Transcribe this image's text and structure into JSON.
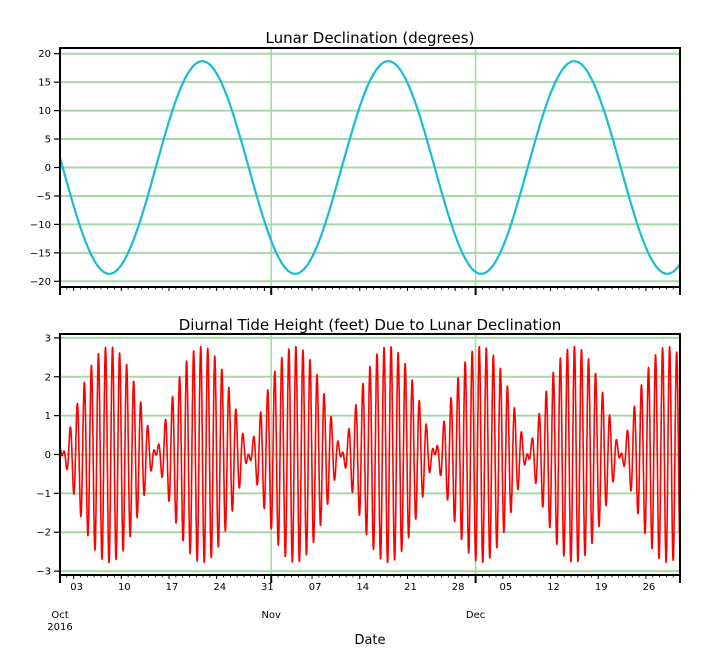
{
  "chart_data": [
    {
      "type": "line",
      "title": "Lunar Declination (degrees)",
      "xlabel": "",
      "ylabel": "",
      "ylim": [
        -21,
        21
      ],
      "yticks": [
        20,
        15,
        10,
        5,
        0,
        -5,
        -10,
        -15,
        -20
      ],
      "ytick_labels": [
        "20",
        "15",
        "10",
        "5",
        "0",
        "−5",
        "−10",
        "−15",
        "−20"
      ],
      "grid": {
        "horizontal": true,
        "vertical_at_months": true,
        "color": "#a8d8a8"
      },
      "line_color": "#17becf",
      "xrange_days": [
        0,
        91
      ],
      "series": [
        {
          "name": "Lunar Declination",
          "model": "amplitude * -sin(2*pi*(day - phase)/period)",
          "amplitude": 18.7,
          "period_days": 27.3,
          "phase_days": 0.4,
          "key_points": [
            {
              "date": "2016-10-01",
              "value": -1
            },
            {
              "date": "2016-10-08",
              "value": -18.5
            },
            {
              "date": "2016-10-21",
              "value": 18.6
            },
            {
              "date": "2016-11-04",
              "value": -18.7
            },
            {
              "date": "2016-11-17",
              "value": 18.7
            },
            {
              "date": "2016-12-01",
              "value": -18.9
            },
            {
              "date": "2016-12-14",
              "value": 18.8
            },
            {
              "date": "2016-12-28",
              "value": -19
            },
            {
              "date": "2016-12-31",
              "value": -17.5
            }
          ]
        }
      ]
    },
    {
      "type": "line",
      "title": "Diurnal Tide Height (feet) Due to Lunar Declination",
      "xlabel": "Date",
      "ylabel": "",
      "ylim": [
        -3.1,
        3.1
      ],
      "yticks": [
        3,
        2,
        1,
        0,
        -1,
        -2,
        -3
      ],
      "ytick_labels": [
        "3",
        "2",
        "1",
        "0",
        "−1",
        "−2",
        "−3"
      ],
      "grid": {
        "horizontal": true,
        "vertical_at_months": true,
        "color": "#a8d8a8"
      },
      "line_color": "#ff0000",
      "xrange_days": [
        0,
        91
      ],
      "series": [
        {
          "name": "Diurnal Tide Height",
          "model": "max_amplitude * (declination/18.7) * cos(2*pi*day/1.035 + 0.3)",
          "max_amplitude": 2.78,
          "carrier_period_days": 1.035,
          "envelope_peaks_feet": 2.78,
          "envelope_nodes": [
            "2016-10-01",
            "2016-10-14",
            "2016-10-28",
            "2016-11-10",
            "2016-11-24",
            "2016-12-08",
            "2016-12-21"
          ]
        }
      ],
      "x_minor_labels": [
        "03",
        "10",
        "17",
        "24",
        "31",
        "07",
        "14",
        "21",
        "28",
        "05",
        "12",
        "19",
        "26"
      ],
      "x_major_labels": [
        "Oct\n2016",
        "Nov",
        "Dec"
      ]
    }
  ],
  "figure": {
    "top_title": "Lunar Declination (degrees)",
    "bottom_title": "Diurnal Tide Height (feet) Due to Lunar Declination",
    "x_axis_label": "Date",
    "minor_ticks": [
      {
        "label": "03",
        "day": 2
      },
      {
        "label": "10",
        "day": 9
      },
      {
        "label": "17",
        "day": 16
      },
      {
        "label": "24",
        "day": 23
      },
      {
        "label": "31",
        "day": 30
      },
      {
        "label": "07",
        "day": 37
      },
      {
        "label": "14",
        "day": 44
      },
      {
        "label": "21",
        "day": 51
      },
      {
        "label": "28",
        "day": 58
      },
      {
        "label": "05",
        "day": 65
      },
      {
        "label": "12",
        "day": 72
      },
      {
        "label": "19",
        "day": 79
      },
      {
        "label": "26",
        "day": 86
      }
    ],
    "major_ticks": [
      {
        "label": "Oct",
        "sublabel": "2016",
        "day": 0
      },
      {
        "label": "Nov",
        "sublabel": "",
        "day": 31
      },
      {
        "label": "Dec",
        "sublabel": "",
        "day": 61
      }
    ],
    "colors": {
      "declination_line": "#17becf",
      "tide_line": "#ff0000",
      "grid": "#a8d8a8",
      "axes": "#000000"
    }
  }
}
